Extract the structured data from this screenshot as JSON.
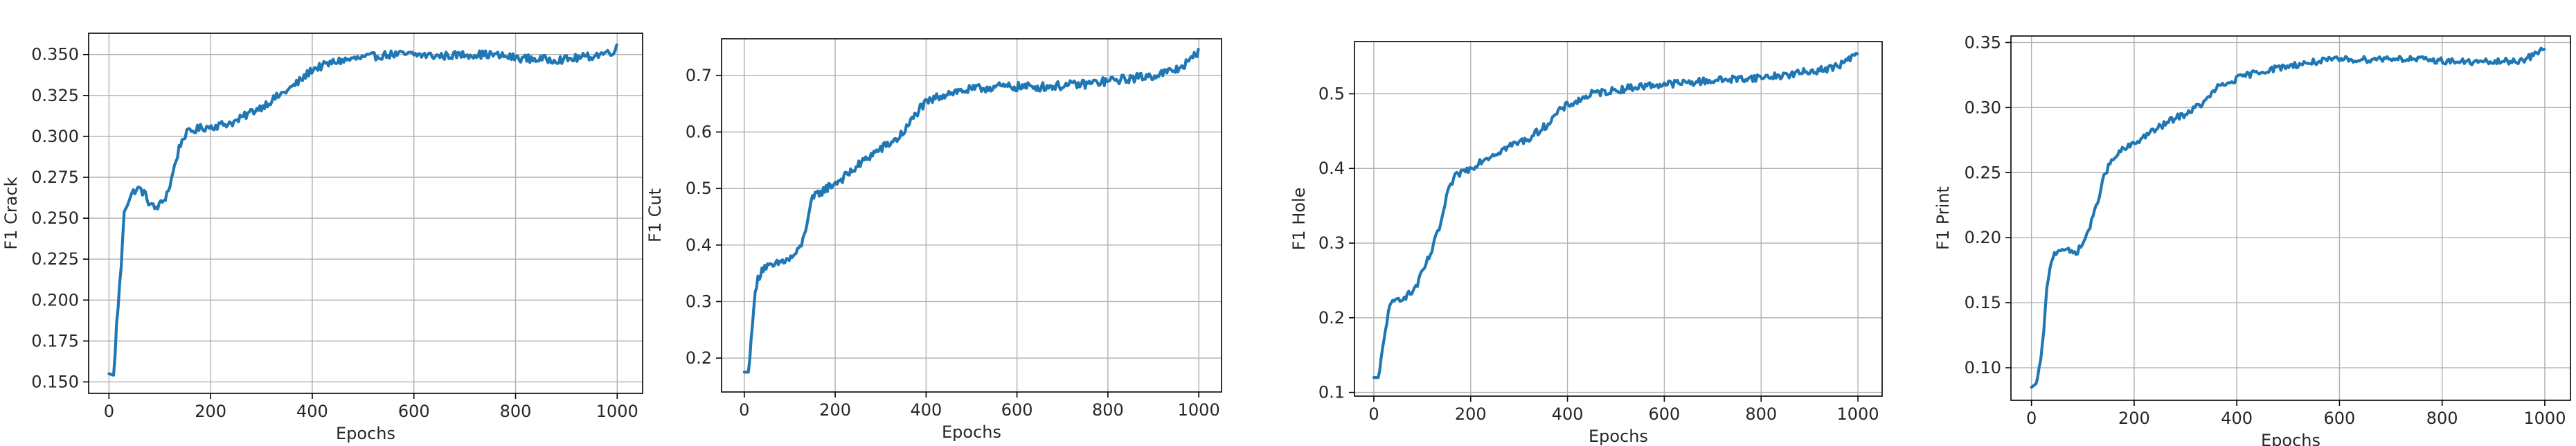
{
  "figure": {
    "grid": true,
    "series_color": "#1f77b4"
  },
  "chart_data": [
    {
      "type": "line",
      "title": "",
      "xlabel": "Epochs",
      "ylabel": "F1 Crack",
      "xlim": [
        -40,
        1050
      ],
      "ylim": [
        0.143,
        0.363
      ],
      "xticks": [
        0,
        200,
        400,
        600,
        800,
        1000
      ],
      "yticks": [
        0.15,
        0.175,
        0.2,
        0.225,
        0.25,
        0.275,
        0.3,
        0.325,
        0.35
      ],
      "xtick_labels": [
        "0",
        "200",
        "400",
        "600",
        "800",
        "1000"
      ],
      "ytick_labels": [
        "0.150",
        "0.175",
        "0.200",
        "0.225",
        "0.250",
        "0.275",
        "0.300",
        "0.325",
        "0.350"
      ],
      "noise": 0.0025,
      "series": [
        {
          "x": [
            0,
            10,
            15,
            25,
            30,
            40,
            50,
            60,
            70,
            80,
            90,
            100,
            110,
            120,
            130,
            140,
            150,
            160,
            180,
            200,
            220,
            250,
            280,
            300,
            330,
            360,
            380,
            400,
            420,
            450,
            500,
            550,
            600,
            650,
            700,
            750,
            800,
            850,
            900,
            950,
            990,
            1000
          ],
          "y": [
            0.155,
            0.154,
            0.185,
            0.225,
            0.255,
            0.262,
            0.267,
            0.268,
            0.265,
            0.259,
            0.256,
            0.258,
            0.262,
            0.27,
            0.283,
            0.295,
            0.301,
            0.303,
            0.305,
            0.306,
            0.307,
            0.309,
            0.315,
            0.318,
            0.324,
            0.33,
            0.335,
            0.341,
            0.343,
            0.346,
            0.348,
            0.35,
            0.35,
            0.349,
            0.35,
            0.35,
            0.348,
            0.347,
            0.347,
            0.349,
            0.352,
            0.354
          ]
        }
      ]
    },
    {
      "type": "line",
      "title": "",
      "xlabel": "Epochs",
      "ylabel": "F1 Cut",
      "xlim": [
        -50,
        1050
      ],
      "ylim": [
        0.14,
        0.765
      ],
      "xticks": [
        0,
        200,
        400,
        600,
        800,
        1000
      ],
      "yticks": [
        0.2,
        0.3,
        0.4,
        0.5,
        0.6,
        0.7
      ],
      "xtick_labels": [
        "0",
        "200",
        "400",
        "600",
        "800",
        "1000"
      ],
      "ytick_labels": [
        "0.2",
        "0.3",
        "0.4",
        "0.5",
        "0.6",
        "0.7"
      ],
      "noise": 0.008,
      "series": [
        {
          "x": [
            0,
            10,
            15,
            20,
            30,
            40,
            50,
            60,
            80,
            100,
            120,
            130,
            140,
            150,
            160,
            180,
            200,
            220,
            250,
            280,
            300,
            320,
            340,
            360,
            380,
            390,
            400,
            420,
            450,
            500,
            550,
            600,
            650,
            700,
            750,
            800,
            850,
            900,
            950,
            980,
            1000
          ],
          "y": [
            0.175,
            0.175,
            0.23,
            0.29,
            0.34,
            0.36,
            0.362,
            0.36,
            0.37,
            0.375,
            0.39,
            0.41,
            0.45,
            0.48,
            0.49,
            0.5,
            0.51,
            0.52,
            0.54,
            0.56,
            0.57,
            0.58,
            0.59,
            0.61,
            0.635,
            0.645,
            0.65,
            0.66,
            0.67,
            0.675,
            0.68,
            0.68,
            0.68,
            0.682,
            0.685,
            0.69,
            0.695,
            0.7,
            0.71,
            0.725,
            0.745
          ]
        }
      ]
    },
    {
      "type": "line",
      "title": "",
      "xlabel": "Epochs",
      "ylabel": "F1 Hole",
      "xlim": [
        -40,
        1050
      ],
      "ylim": [
        0.095,
        0.57
      ],
      "xticks": [
        0,
        200,
        400,
        600,
        800,
        1000
      ],
      "yticks": [
        0.1,
        0.2,
        0.3,
        0.4,
        0.5
      ],
      "xtick_labels": [
        "0",
        "200",
        "400",
        "600",
        "800",
        "1000"
      ],
      "ytick_labels": [
        "0.1",
        "0.2",
        "0.3",
        "0.4",
        "0.5"
      ],
      "noise": 0.005,
      "series": [
        {
          "x": [
            0,
            5,
            10,
            20,
            30,
            40,
            50,
            60,
            70,
            80,
            90,
            100,
            120,
            140,
            150,
            160,
            170,
            180,
            200,
            220,
            250,
            280,
            300,
            320,
            340,
            360,
            380,
            400,
            420,
            450,
            500,
            550,
            600,
            650,
            700,
            750,
            800,
            850,
            900,
            950,
            980,
            1000
          ],
          "y": [
            0.12,
            0.12,
            0.12,
            0.165,
            0.21,
            0.22,
            0.225,
            0.228,
            0.23,
            0.235,
            0.245,
            0.26,
            0.29,
            0.33,
            0.36,
            0.38,
            0.39,
            0.395,
            0.4,
            0.41,
            0.42,
            0.43,
            0.435,
            0.44,
            0.45,
            0.46,
            0.475,
            0.485,
            0.49,
            0.5,
            0.505,
            0.51,
            0.513,
            0.515,
            0.518,
            0.52,
            0.522,
            0.525,
            0.53,
            0.535,
            0.545,
            0.555
          ]
        }
      ]
    },
    {
      "type": "line",
      "title": "",
      "xlabel": "Epochs",
      "ylabel": "F1 Print",
      "xlim": [
        -40,
        1050
      ],
      "ylim": [
        0.075,
        0.355
      ],
      "xticks": [
        0,
        200,
        400,
        600,
        800,
        1000
      ],
      "yticks": [
        0.1,
        0.15,
        0.2,
        0.25,
        0.3,
        0.35
      ],
      "xtick_labels": [
        "0",
        "200",
        "400",
        "600",
        "800",
        "1000"
      ],
      "ytick_labels": [
        "0.10",
        "0.15",
        "0.20",
        "0.25",
        "0.30",
        "0.35"
      ],
      "noise": 0.0025,
      "series": [
        {
          "x": [
            0,
            10,
            20,
            30,
            40,
            50,
            60,
            70,
            80,
            90,
            100,
            110,
            120,
            130,
            140,
            150,
            160,
            170,
            180,
            200,
            220,
            250,
            280,
            300,
            320,
            340,
            360,
            380,
            400,
            420,
            450,
            500,
            550,
            600,
            650,
            700,
            750,
            800,
            850,
            900,
            950,
            980,
            1000
          ],
          "y": [
            0.085,
            0.088,
            0.11,
            0.16,
            0.185,
            0.19,
            0.192,
            0.19,
            0.188,
            0.19,
            0.195,
            0.205,
            0.215,
            0.23,
            0.245,
            0.255,
            0.26,
            0.265,
            0.268,
            0.272,
            0.278,
            0.285,
            0.292,
            0.295,
            0.3,
            0.305,
            0.315,
            0.318,
            0.322,
            0.325,
            0.328,
            0.332,
            0.335,
            0.337,
            0.337,
            0.338,
            0.337,
            0.336,
            0.335,
            0.335,
            0.336,
            0.34,
            0.347
          ]
        }
      ]
    }
  ]
}
